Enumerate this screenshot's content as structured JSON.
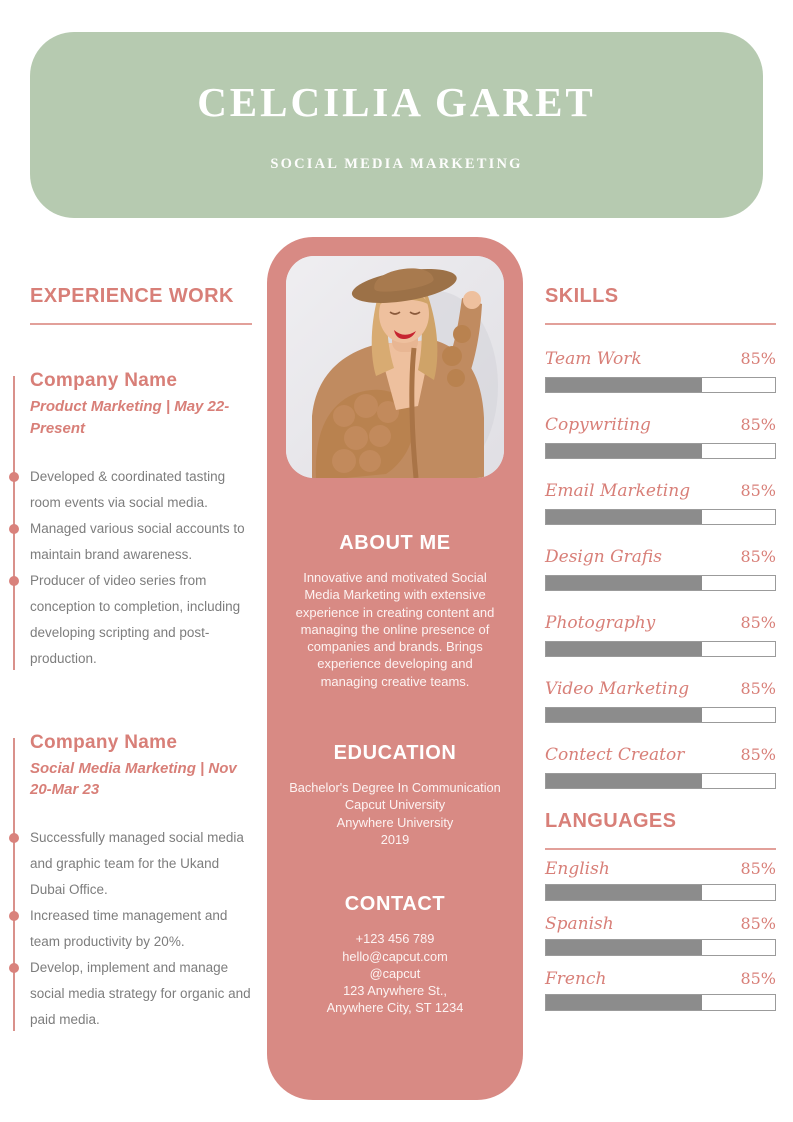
{
  "header": {
    "name": "CELCILIA GARET",
    "title": "SOCIAL MEDIA MARKETING"
  },
  "experience": {
    "heading": "EXPERIENCE WORK",
    "jobs": [
      {
        "company": "Company Name",
        "meta": "Product Marketing | May 22-Present",
        "bullets": [
          "Developed & coordinated tasting room events via social media.",
          "Managed various social accounts to maintain brand awareness.",
          "Producer of video series from conception to completion, including developing scripting and post-production."
        ]
      },
      {
        "company": "Company Name",
        "meta": "Social Media Marketing | Nov 20-Mar 23",
        "bullets": [
          "Successfully managed social media and graphic team for the Ukand Dubai Office.",
          "Increased time management and team productivity by 20%.",
          "Develop, implement and manage social media strategy for organic and paid media."
        ]
      }
    ]
  },
  "profile": {
    "about": {
      "heading": "ABOUT ME",
      "text": "Innovative and motivated Social Media Marketing with extensive experience in creating content and managing the online presence of companies and brands. Brings experience developing and managing creative teams."
    },
    "education": {
      "heading": "EDUCATION",
      "lines": [
        "Bachelor's Degree In Communication",
        "Capcut University",
        "Anywhere University",
        "2019"
      ]
    },
    "contact": {
      "heading": "CONTACT",
      "lines": [
        "+123  456 789",
        "hello@capcut.com",
        "@capcut",
        "123 Anywhere St.,",
        "Anywhere City, ST 1234"
      ]
    }
  },
  "skills": {
    "heading": "SKILLS",
    "items": [
      {
        "label": "Team Work",
        "value": "85%",
        "fill": 68
      },
      {
        "label": "Copywriting",
        "value": "85%",
        "fill": 68
      },
      {
        "label": "Email Marketing",
        "value": "85%",
        "fill": 68
      },
      {
        "label": "Design Grafis",
        "value": "85%",
        "fill": 68
      },
      {
        "label": "Photography",
        "value": "85%",
        "fill": 68
      },
      {
        "label": "Video Marketing",
        "value": "85%",
        "fill": 68
      },
      {
        "label": "Contect Creator",
        "value": "85%",
        "fill": 68
      }
    ]
  },
  "languages": {
    "heading": "LANGUAGES",
    "items": [
      {
        "label": "English",
        "value": "85%",
        "fill": 68
      },
      {
        "label": "Spanish",
        "value": "85%",
        "fill": 68
      },
      {
        "label": "French",
        "value": "85%",
        "fill": 68
      }
    ]
  },
  "colors": {
    "header_green": "#b6cab0",
    "panel_pink": "#d88a84",
    "accent_pink": "#d87f78",
    "bar_fill_gray": "#8c8c8c",
    "bar_border_gray": "#9b9b9b",
    "body_text_gray": "#7d7d7d"
  }
}
